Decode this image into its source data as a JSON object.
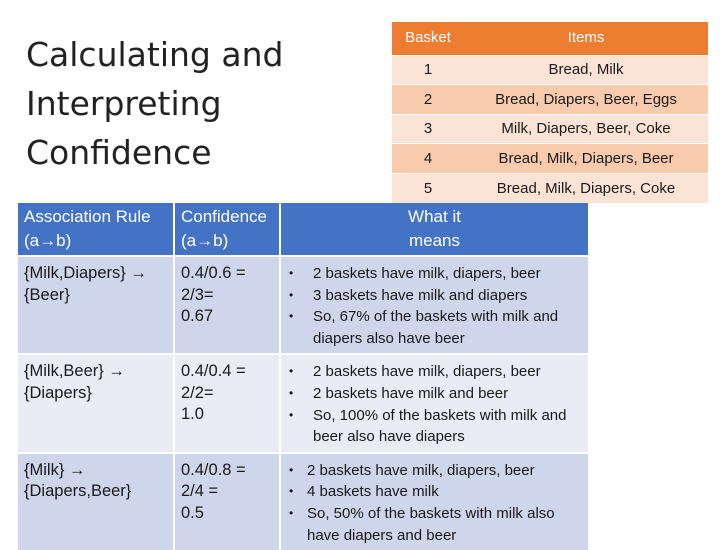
{
  "title": {
    "lines": [
      "Calculating and",
      "Interpreting",
      "Confidence"
    ]
  },
  "basket_table": {
    "headers": [
      "Basket",
      "Items"
    ],
    "rows": [
      {
        "basket": "1",
        "items": "Bread, Milk"
      },
      {
        "basket": "2",
        "items": "Bread, Diapers, Beer, Eggs"
      },
      {
        "basket": "3",
        "items": "Milk, Diapers, Beer, Coke"
      },
      {
        "basket": "4",
        "items": "Bread, Milk, Diapers, Beer"
      },
      {
        "basket": "5",
        "items": "Bread, Milk, Diapers, Coke"
      }
    ],
    "colors": {
      "header": "#ed7d31",
      "row_light": "#fbe4d5",
      "row_dark": "#f8cbad"
    }
  },
  "rules_table": {
    "headers": {
      "rule": [
        "Association Rule",
        "(a→b)"
      ],
      "confidence": [
        "Confidence",
        "(a→b)"
      ],
      "means": [
        "What it",
        "means"
      ]
    },
    "rows": [
      {
        "rule_lhs": "{Milk,Diapers} →",
        "rule_rhs": "{Beer}",
        "confidence": [
          "0.4/0.6 =",
          "2/3=",
          "0.67"
        ],
        "means": [
          "2 baskets have milk, diapers, beer",
          "3 baskets have milk and diapers",
          "So, 67% of the baskets with milk and diapers also have beer"
        ]
      },
      {
        "rule_lhs": "{Milk,Beer} →",
        "rule_rhs": "{Diapers}",
        "confidence": [
          "0.4/0.4 =",
          "2/2=",
          "1.0"
        ],
        "means": [
          "2 baskets have milk, diapers, beer",
          "2 baskets have milk and beer",
          "So, 100% of the baskets with milk and beer also have diapers"
        ]
      },
      {
        "rule_lhs": "{Milk} →",
        "rule_rhs": "{Diapers,Beer}",
        "confidence": [
          "0.4/0.8 =",
          "2/4 =",
          "0.5"
        ],
        "means": [
          "2 baskets have milk, diapers, beer",
          "4 baskets have milk",
          "So, 50% of the baskets with milk also have diapers and beer"
        ]
      }
    ],
    "colors": {
      "header": "#4472c4",
      "row_dark": "#cfd5ea",
      "row_light": "#e9ebf5"
    }
  }
}
